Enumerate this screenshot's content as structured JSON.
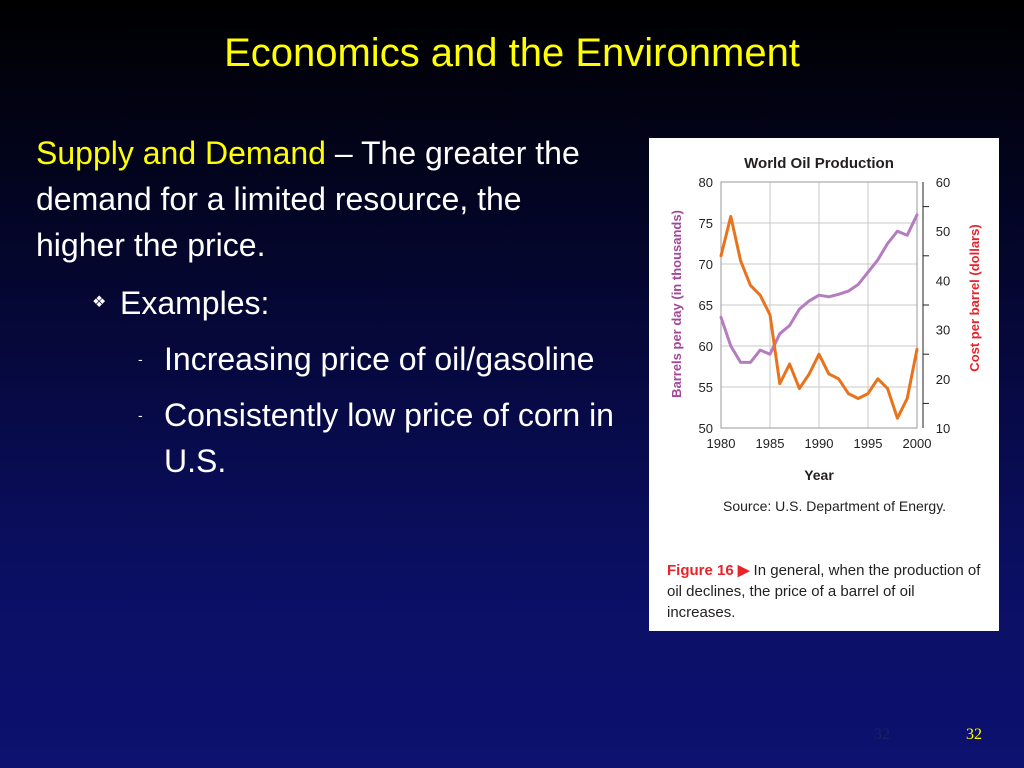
{
  "slide": {
    "title": "Economics and the Environment",
    "lead_highlight": "Supply and Demand",
    "lead_rest": " – The greater the demand for a limited resource, the higher the price.",
    "bullet_marker": "❖",
    "bullet": "Examples:",
    "sub_marker": "-",
    "sub_items": [
      "Increasing price of oil/gasoline",
      "Consistently low price of corn in U.S."
    ],
    "slide_number": "32",
    "slide_number_faint": "32"
  },
  "figure": {
    "source": "Source: U.S. Department of Energy.",
    "caption_label": "Figure 16 ▶",
    "caption_text": " In general, when the production of oil declines, the price of a barrel of oil increases."
  },
  "colors": {
    "title": "#ffff00",
    "production": "#b57cc0",
    "price": "#e8731c",
    "left_axis_label": "#a4479a",
    "right_axis_label": "#e8232a"
  },
  "chart_data": {
    "type": "line",
    "title": "World Oil Production",
    "xlabel": "Year",
    "ylabel_left": "Barrels per day (in thousands)",
    "ylabel_right": "Cost per barrel (dollars)",
    "x": [
      1980,
      1981,
      1982,
      1983,
      1984,
      1985,
      1986,
      1987,
      1988,
      1989,
      1990,
      1991,
      1992,
      1993,
      1994,
      1995,
      1996,
      1997,
      1998,
      1999,
      2000
    ],
    "x_ticks": [
      1980,
      1985,
      1990,
      1995,
      2000
    ],
    "xlim": [
      1980,
      2000
    ],
    "ylim_left": [
      50,
      80
    ],
    "y_ticks_left": [
      50,
      55,
      60,
      65,
      70,
      75,
      80
    ],
    "ylim_right": [
      10,
      60
    ],
    "y_ticks_right": [
      10,
      20,
      30,
      40,
      50,
      60
    ],
    "grid": true,
    "series": [
      {
        "axis": "left",
        "color": "#b57cc0",
        "values": [
          63.5,
          60,
          58,
          58,
          59.5,
          59,
          61.5,
          62.5,
          64.5,
          65.5,
          66.2,
          66,
          66.3,
          66.7,
          67.5,
          69,
          70.5,
          72.5,
          74,
          73.5,
          76
        ]
      },
      {
        "axis": "right",
        "color": "#e8731c",
        "values": [
          45,
          53,
          44,
          39,
          37,
          33,
          19,
          23,
          18,
          21,
          25,
          21,
          20,
          17,
          16,
          17,
          20,
          18,
          12,
          16,
          26
        ]
      }
    ]
  }
}
